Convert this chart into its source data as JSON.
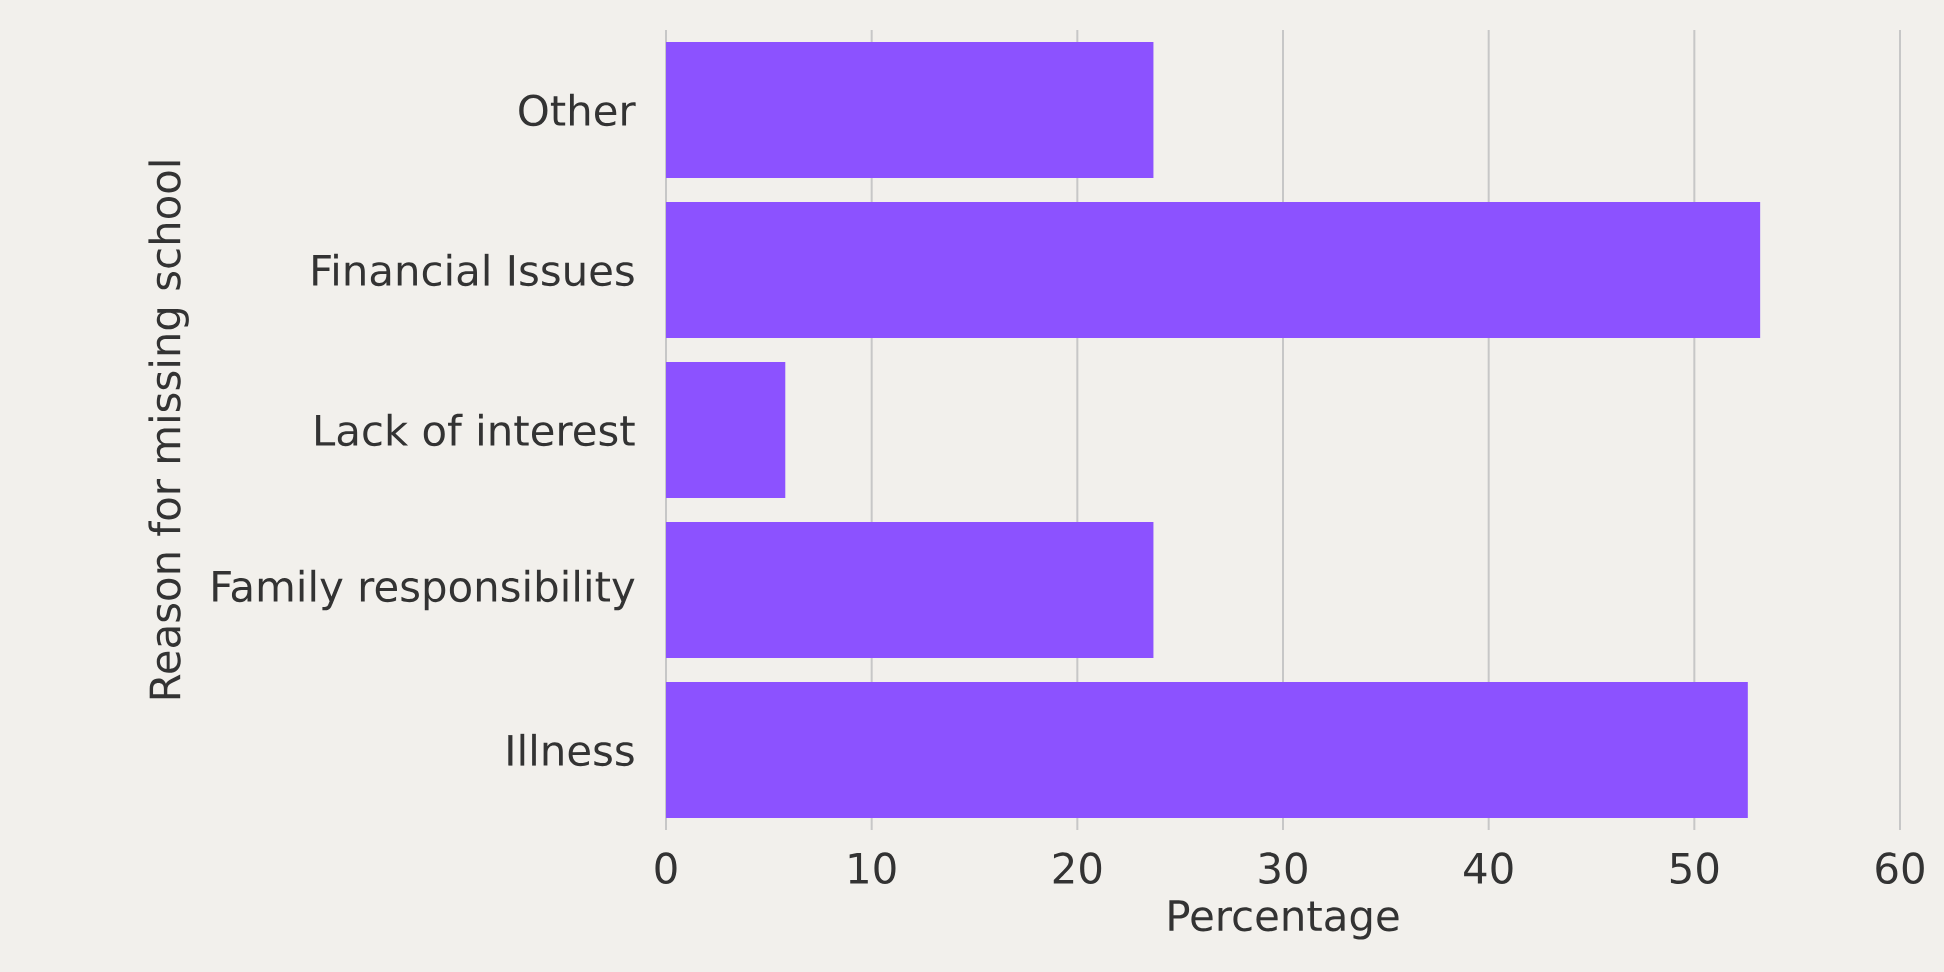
{
  "chart_data": {
    "type": "bar",
    "orientation": "horizontal",
    "categories": [
      "Other",
      "Financial Issues",
      "Lack of interest",
      "Family responsibility",
      "Illness"
    ],
    "values": [
      23.7,
      53.2,
      5.8,
      23.7,
      52.6
    ],
    "color": "#8c52ff",
    "xlabel": "Percentage",
    "ylabel": "Reason for missing school",
    "xlim": [
      0,
      60
    ],
    "xticks": [
      0,
      10,
      20,
      30,
      40,
      50,
      60
    ],
    "grid": "x"
  }
}
